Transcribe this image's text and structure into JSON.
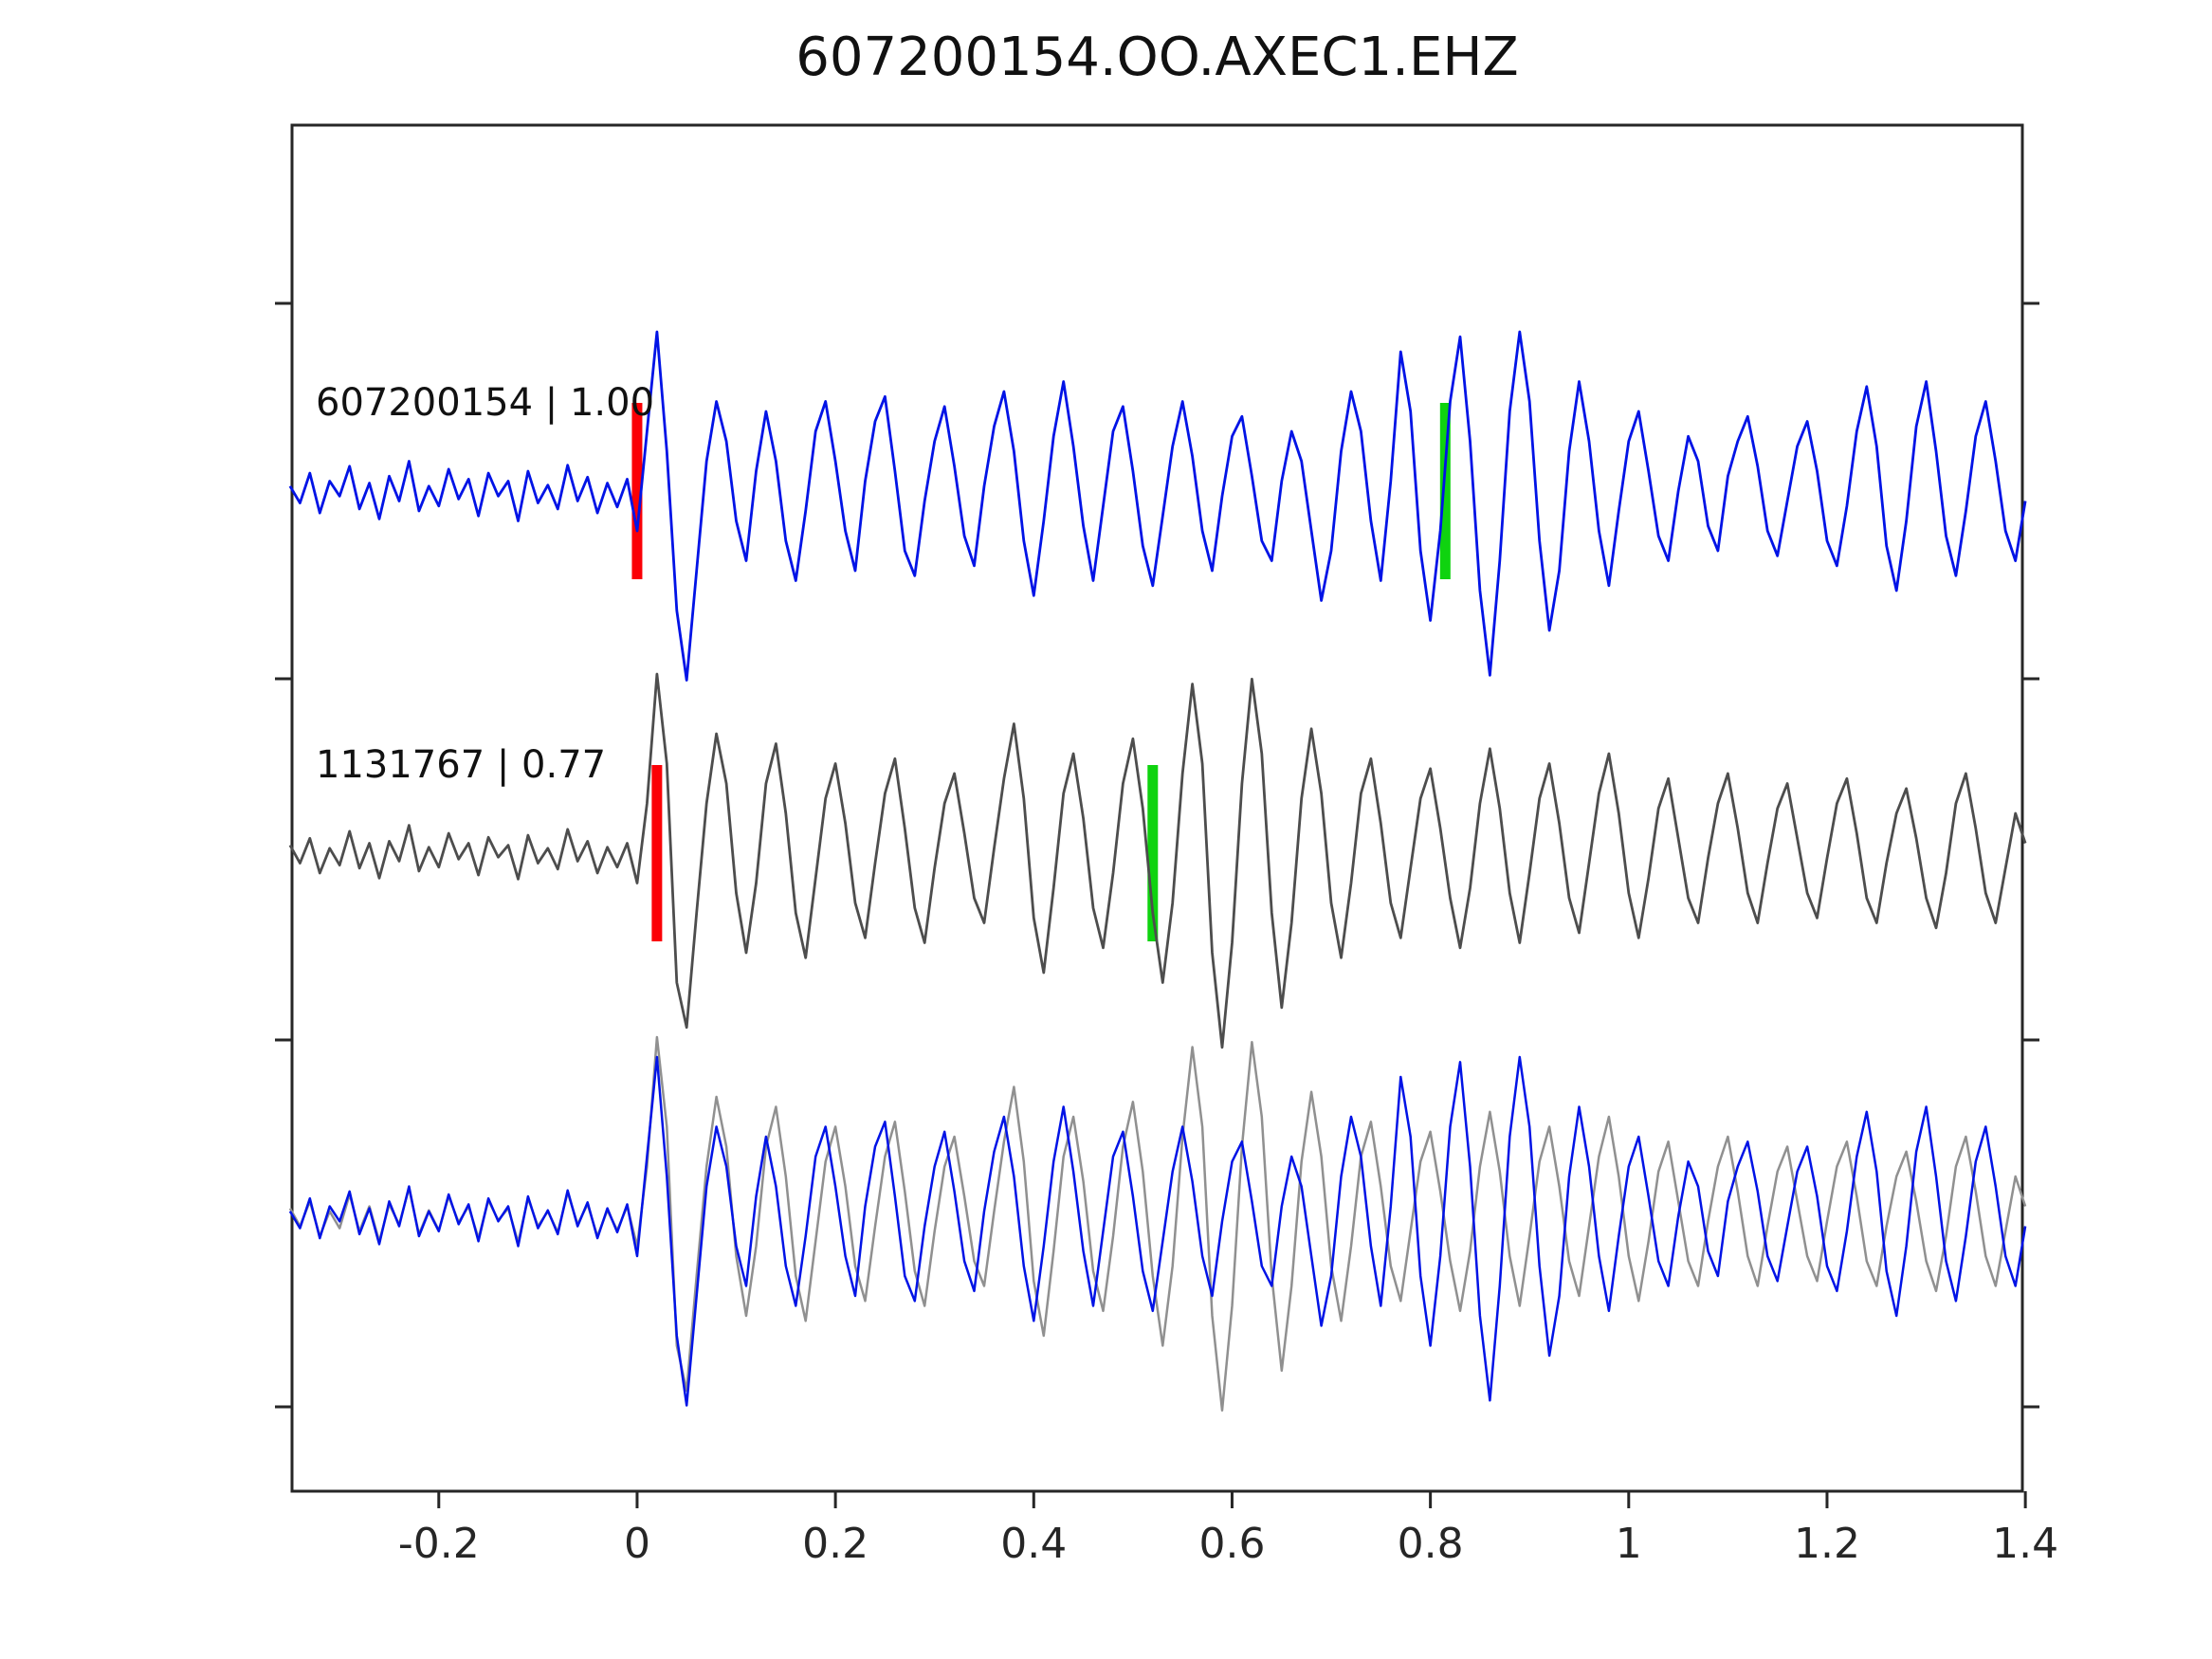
{
  "chart_data": {
    "type": "line",
    "title": "607200154.OO.AXEC1.EHZ",
    "xlabel": "",
    "ylabel": "",
    "xlim": [
      -0.348,
      1.397
    ],
    "grid": false,
    "legend_position": "none",
    "x_start": -0.35,
    "dx": 0.01,
    "x_ticks": [
      {
        "value": -0.2,
        "label": "-0.2"
      },
      {
        "value": 0.0,
        "label": "0"
      },
      {
        "value": 0.2,
        "label": "0.2"
      },
      {
        "value": 0.4,
        "label": "0.4"
      },
      {
        "value": 0.6,
        "label": "0.6"
      },
      {
        "value": 0.8,
        "label": "0.8"
      },
      {
        "value": 1.0,
        "label": "1"
      },
      {
        "value": 1.2,
        "label": "1.2"
      },
      {
        "value": 1.4,
        "label": "1.4"
      }
    ],
    "colors": {
      "template_blue": "#0013e6",
      "matched_gray": "#4d4d4d",
      "overlay_gray": "#909090",
      "pick_red": "#fb0006",
      "pick_green": "#0fd30f",
      "axis": "#262626"
    },
    "rows": [
      {
        "name": "template-trace-row",
        "label": "607200154 | 1.00",
        "traces": [
          {
            "series": "blue",
            "color": "#0013e6",
            "width": 2.8
          }
        ],
        "markers": [
          {
            "name": "pick-marker-red",
            "x": 0.0,
            "color": "#fb0006"
          },
          {
            "name": "pick-marker-green",
            "x": 0.815,
            "color": "#0fd30f"
          }
        ]
      },
      {
        "name": "matched-trace-row",
        "label": "1131767 | 0.77",
        "traces": [
          {
            "series": "gray",
            "color": "#4d4d4d",
            "width": 2.8
          }
        ],
        "markers": [
          {
            "name": "pick-marker-red",
            "x": 0.02,
            "color": "#fb0006"
          },
          {
            "name": "pick-marker-green",
            "x": 0.52,
            "color": "#0fd30f"
          }
        ]
      },
      {
        "name": "overlay-trace-row",
        "label": "",
        "traces": [
          {
            "series": "gray",
            "color": "#909090",
            "width": 2.5
          },
          {
            "series": "blue",
            "color": "#0013e6",
            "width": 2.5
          }
        ],
        "markers": []
      }
    ],
    "series": {
      "blue": [
        0.05,
        -0.12,
        0.18,
        -0.22,
        0.1,
        -0.05,
        0.25,
        -0.18,
        0.08,
        -0.28,
        0.15,
        -0.1,
        0.3,
        -0.2,
        0.05,
        -0.15,
        0.22,
        -0.08,
        0.12,
        -0.25,
        0.18,
        -0.05,
        0.1,
        -0.3,
        0.2,
        -0.12,
        0.06,
        -0.18,
        0.26,
        -0.1,
        0.14,
        -0.22,
        0.08,
        -0.16,
        0.12,
        -0.4,
        0.6,
        1.6,
        0.4,
        -1.2,
        -1.9,
        -0.8,
        0.3,
        0.9,
        0.5,
        -0.3,
        -0.7,
        0.2,
        0.8,
        0.3,
        -0.5,
        -0.9,
        -0.2,
        0.6,
        0.9,
        0.3,
        -0.4,
        -0.8,
        0.1,
        0.7,
        0.95,
        0.2,
        -0.6,
        -0.85,
        -0.1,
        0.5,
        0.85,
        0.25,
        -0.45,
        -0.75,
        0.05,
        0.65,
        1.0,
        0.4,
        -0.5,
        -1.05,
        -0.3,
        0.55,
        1.1,
        0.45,
        -0.35,
        -0.9,
        -0.15,
        0.6,
        0.85,
        0.2,
        -0.55,
        -0.95,
        -0.25,
        0.45,
        0.9,
        0.35,
        -0.4,
        -0.8,
        -0.05,
        0.55,
        0.75,
        0.15,
        -0.5,
        -0.7,
        0.1,
        0.6,
        0.3,
        -0.4,
        -1.1,
        -0.6,
        0.4,
        1.0,
        0.6,
        -0.3,
        -0.9,
        0.1,
        1.4,
        0.8,
        -0.6,
        -1.3,
        -0.4,
        0.9,
        1.55,
        0.5,
        -1.0,
        -1.85,
        -0.7,
        0.8,
        1.6,
        0.9,
        -0.5,
        -1.4,
        -0.8,
        0.4,
        1.1,
        0.5,
        -0.4,
        -0.95,
        -0.2,
        0.5,
        0.8,
        0.2,
        -0.45,
        -0.7,
        0.0,
        0.55,
        0.3,
        -0.35,
        -0.6,
        0.15,
        0.5,
        0.75,
        0.25,
        -0.4,
        -0.65,
        -0.1,
        0.45,
        0.7,
        0.2,
        -0.5,
        -0.75,
        -0.15,
        0.6,
        1.05,
        0.45,
        -0.55,
        -1.0,
        -0.3,
        0.65,
        1.1,
        0.4,
        -0.45,
        -0.85,
        -0.2,
        0.55,
        0.9,
        0.3,
        -0.4,
        -0.7,
        -0.1
      ],
      "gray": [
        0.08,
        -0.1,
        0.15,
        -0.2,
        0.05,
        -0.12,
        0.22,
        -0.15,
        0.1,
        -0.25,
        0.12,
        -0.08,
        0.28,
        -0.18,
        0.06,
        -0.14,
        0.2,
        -0.06,
        0.1,
        -0.22,
        0.16,
        -0.04,
        0.08,
        -0.26,
        0.18,
        -0.1,
        0.05,
        -0.16,
        0.24,
        -0.08,
        0.12,
        -0.2,
        0.06,
        -0.14,
        0.1,
        -0.3,
        0.5,
        1.8,
        0.9,
        -1.3,
        -1.75,
        -0.6,
        0.5,
        1.2,
        0.7,
        -0.4,
        -1.0,
        -0.3,
        0.7,
        1.1,
        0.4,
        -0.6,
        -1.05,
        -0.25,
        0.55,
        0.9,
        0.3,
        -0.5,
        -0.85,
        -0.1,
        0.6,
        0.95,
        0.25,
        -0.55,
        -0.9,
        -0.15,
        0.5,
        0.8,
        0.2,
        -0.45,
        -0.7,
        0.05,
        0.75,
        1.3,
        0.55,
        -0.65,
        -1.2,
        -0.35,
        0.6,
        1.0,
        0.35,
        -0.55,
        -0.95,
        -0.2,
        0.7,
        1.15,
        0.45,
        -0.6,
        -1.3,
        -0.5,
        0.8,
        1.7,
        0.9,
        -1.0,
        -1.95,
        -0.9,
        0.7,
        1.75,
        1.0,
        -0.6,
        -1.55,
        -0.7,
        0.55,
        1.25,
        0.6,
        -0.5,
        -1.05,
        -0.3,
        0.6,
        0.95,
        0.3,
        -0.5,
        -0.85,
        -0.15,
        0.55,
        0.85,
        0.25,
        -0.45,
        -0.95,
        -0.35,
        0.5,
        1.05,
        0.45,
        -0.4,
        -0.9,
        -0.2,
        0.55,
        0.9,
        0.3,
        -0.45,
        -0.8,
        -0.1,
        0.6,
        1.0,
        0.4,
        -0.4,
        -0.85,
        -0.25,
        0.45,
        0.75,
        0.15,
        -0.45,
        -0.7,
        -0.05,
        0.5,
        0.8,
        0.25,
        -0.4,
        -0.7,
        -0.1,
        0.45,
        0.7,
        0.15,
        -0.4,
        -0.65,
        -0.05,
        0.5,
        0.75,
        0.2,
        -0.45,
        -0.7,
        -0.1,
        0.4,
        0.65,
        0.15,
        -0.45,
        -0.75,
        -0.2,
        0.5,
        0.8,
        0.25,
        -0.4,
        -0.7,
        -0.15,
        0.4,
        0.1
      ]
    }
  }
}
